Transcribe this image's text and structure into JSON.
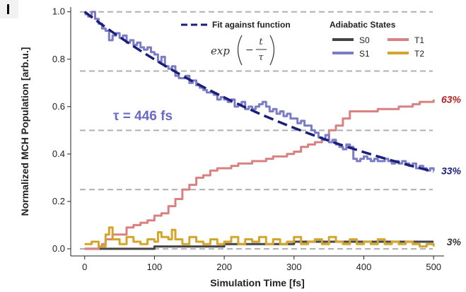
{
  "chart_data": {
    "type": "line",
    "title": "",
    "xlabel": "Simulation Time [fs]",
    "ylabel": "Normalized MCH Population [arb.u.]",
    "xlim": [
      -20,
      515
    ],
    "ylim": [
      -0.03,
      1.02
    ],
    "x_ticks": [
      0,
      100,
      200,
      300,
      400,
      500
    ],
    "y_ticks": [
      0.0,
      0.2,
      0.4,
      0.6,
      0.8,
      1.0
    ],
    "hlines": [
      0.0,
      0.25,
      0.5,
      0.75,
      1.0
    ],
    "legend_title": "Adiabatic States",
    "legend_placement": "top-right",
    "fit": {
      "label": "Fit against function",
      "formula_exp": "exp",
      "formula_num": "t",
      "formula_den": "τ",
      "tau_label": "τ = 446 fs",
      "tau": 446,
      "color": "#1a1f7a"
    },
    "series": [
      {
        "name": "S0",
        "color": "#444444",
        "x": [
          0,
          50,
          99,
          100,
          199,
          200,
          299,
          300,
          500
        ],
        "values": [
          0.0,
          0.0,
          0.0,
          0.01,
          0.01,
          0.02,
          0.02,
          0.03,
          0.03
        ]
      },
      {
        "name": "S1",
        "color": "#7b7bc6",
        "x": [
          0,
          5,
          10,
          15,
          20,
          25,
          30,
          35,
          40,
          45,
          50,
          55,
          60,
          65,
          70,
          75,
          80,
          85,
          90,
          95,
          100,
          105,
          110,
          115,
          120,
          125,
          130,
          135,
          140,
          145,
          150,
          155,
          160,
          165,
          170,
          175,
          180,
          185,
          190,
          195,
          200,
          205,
          210,
          215,
          220,
          225,
          230,
          235,
          240,
          245,
          250,
          255,
          260,
          265,
          270,
          275,
          280,
          285,
          290,
          295,
          300,
          305,
          310,
          315,
          320,
          325,
          330,
          335,
          340,
          345,
          350,
          355,
          360,
          365,
          370,
          375,
          380,
          385,
          390,
          395,
          400,
          405,
          410,
          415,
          420,
          425,
          430,
          435,
          440,
          445,
          450,
          455,
          460,
          465,
          470,
          475,
          480,
          485,
          490,
          495,
          500
        ],
        "values": [
          0.99,
          0.98,
          1.0,
          0.97,
          0.95,
          0.93,
          0.92,
          0.88,
          0.9,
          0.91,
          0.89,
          0.9,
          0.87,
          0.88,
          0.86,
          0.87,
          0.85,
          0.84,
          0.85,
          0.83,
          0.82,
          0.79,
          0.81,
          0.77,
          0.76,
          0.77,
          0.73,
          0.72,
          0.72,
          0.73,
          0.7,
          0.71,
          0.69,
          0.68,
          0.67,
          0.66,
          0.66,
          0.65,
          0.63,
          0.64,
          0.63,
          0.62,
          0.63,
          0.6,
          0.61,
          0.62,
          0.59,
          0.6,
          0.59,
          0.6,
          0.61,
          0.62,
          0.6,
          0.58,
          0.59,
          0.57,
          0.58,
          0.56,
          0.57,
          0.55,
          0.55,
          0.53,
          0.54,
          0.52,
          0.52,
          0.5,
          0.49,
          0.47,
          0.46,
          0.48,
          0.45,
          0.46,
          0.44,
          0.43,
          0.42,
          0.44,
          0.43,
          0.38,
          0.37,
          0.38,
          0.39,
          0.38,
          0.37,
          0.38,
          0.37,
          0.37,
          0.38,
          0.37,
          0.36,
          0.37,
          0.36,
          0.37,
          0.36,
          0.35,
          0.36,
          0.34,
          0.35,
          0.34,
          0.33,
          0.34,
          0.33
        ]
      },
      {
        "name": "T1",
        "color": "#d98080",
        "x": [
          0,
          10,
          20,
          25,
          30,
          40,
          50,
          60,
          70,
          80,
          90,
          100,
          110,
          120,
          130,
          140,
          150,
          160,
          170,
          180,
          190,
          200,
          210,
          220,
          230,
          240,
          250,
          260,
          270,
          280,
          290,
          300,
          310,
          320,
          330,
          340,
          350,
          360,
          370,
          380,
          390,
          400,
          410,
          420,
          430,
          440,
          450,
          460,
          470,
          480,
          490,
          500
        ],
        "values": [
          0.0,
          0.0,
          0.01,
          0.02,
          0.04,
          0.06,
          0.06,
          0.09,
          0.1,
          0.11,
          0.12,
          0.14,
          0.15,
          0.18,
          0.21,
          0.25,
          0.27,
          0.3,
          0.31,
          0.33,
          0.34,
          0.34,
          0.35,
          0.36,
          0.36,
          0.37,
          0.37,
          0.38,
          0.39,
          0.39,
          0.4,
          0.41,
          0.43,
          0.44,
          0.45,
          0.46,
          0.5,
          0.52,
          0.55,
          0.58,
          0.58,
          0.58,
          0.58,
          0.59,
          0.59,
          0.59,
          0.6,
          0.6,
          0.61,
          0.62,
          0.62,
          0.63
        ]
      },
      {
        "name": "T2",
        "color": "#d4a52a",
        "x": [
          0,
          10,
          20,
          30,
          35,
          40,
          50,
          60,
          70,
          80,
          90,
          100,
          105,
          110,
          120,
          125,
          130,
          140,
          150,
          160,
          170,
          180,
          190,
          200,
          210,
          220,
          230,
          240,
          250,
          260,
          270,
          280,
          290,
          300,
          310,
          320,
          330,
          340,
          350,
          360,
          370,
          380,
          390,
          400,
          410,
          420,
          430,
          440,
          450,
          460,
          470,
          480,
          490,
          500
        ],
        "values": [
          0.02,
          0.03,
          0.01,
          0.06,
          0.09,
          0.04,
          0.02,
          0.05,
          0.03,
          0.02,
          0.04,
          0.03,
          0.07,
          0.05,
          0.04,
          0.08,
          0.04,
          0.02,
          0.05,
          0.03,
          0.02,
          0.04,
          0.02,
          0.03,
          0.05,
          0.02,
          0.04,
          0.03,
          0.05,
          0.02,
          0.04,
          0.02,
          0.03,
          0.05,
          0.02,
          0.03,
          0.04,
          0.02,
          0.05,
          0.03,
          0.02,
          0.04,
          0.02,
          0.03,
          0.02,
          0.04,
          0.02,
          0.03,
          0.02,
          0.03,
          0.02,
          0.01,
          0.02,
          0.01
        ]
      }
    ],
    "annotations": [
      {
        "text": "63%",
        "color": "#b52020",
        "series": "T1"
      },
      {
        "text": "33%",
        "color": "#1a1f7a",
        "series": "S1"
      },
      {
        "text": "3%",
        "color": "#333333",
        "series": "S0"
      }
    ]
  }
}
